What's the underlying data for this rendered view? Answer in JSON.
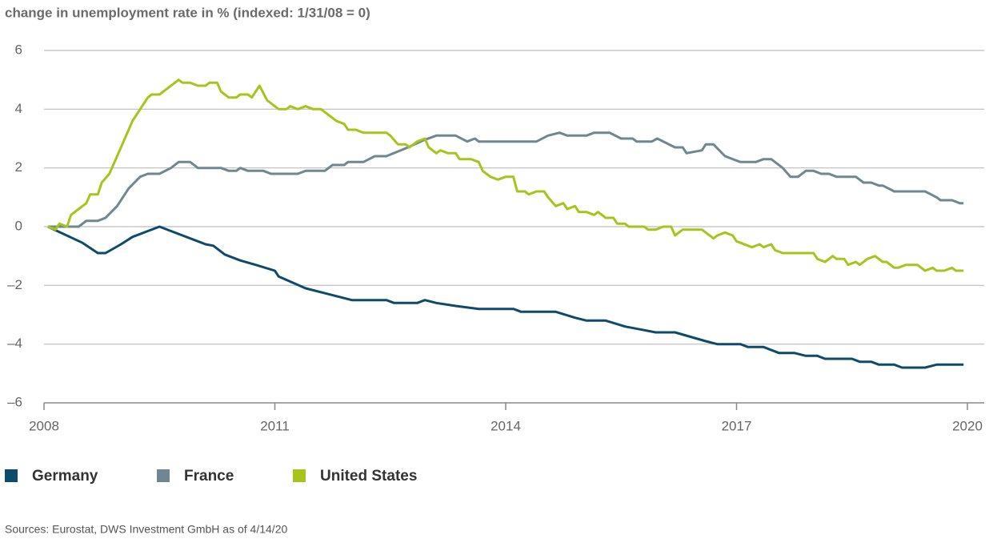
{
  "chart_data": {
    "type": "line",
    "title": "change in unemployment rate in % (indexed: 1/31/08 = 0)",
    "source": "Sources: Eurostat, DWS Investment GmbH as of 4/14/20",
    "xlim": [
      2008,
      2020
    ],
    "xticks": [
      2008,
      2011,
      2014,
      2017,
      2020
    ],
    "ylim": [
      -6,
      6
    ],
    "yticks": [
      {
        "value": -6,
        "label": "–6"
      },
      {
        "value": -4,
        "label": "–4"
      },
      {
        "value": -2,
        "label": "–2"
      },
      0,
      2,
      4,
      6
    ],
    "grid": true,
    "legend": "bottom-left",
    "series": [
      {
        "name": "Germany",
        "color": "#0d4a6b",
        "x": [
          2008.05,
          2008.5,
          2008.7,
          2008.8,
          2009.0,
          2009.15,
          2009.35,
          2009.5,
          2009.65,
          2010.1,
          2010.2,
          2010.35,
          2010.55,
          2010.75,
          2011.0,
          2011.05,
          2011.4,
          2011.7,
          2012.0,
          2012.45,
          2012.55,
          2012.85,
          2012.95,
          2013.1,
          2013.35,
          2013.65,
          2014.1,
          2014.2,
          2014.65,
          2014.9,
          2015.05,
          2015.3,
          2015.55,
          2015.75,
          2015.95,
          2016.2,
          2016.4,
          2016.6,
          2016.75,
          2017.05,
          2017.15,
          2017.35,
          2017.55,
          2017.75,
          2017.9,
          2018.05,
          2018.15,
          2018.5,
          2018.6,
          2018.75,
          2018.85,
          2019.05,
          2019.15,
          2019.45,
          2019.6,
          2019.95
        ],
        "values": [
          0,
          -0.55,
          -0.9,
          -0.9,
          -0.6,
          -0.35,
          -0.15,
          0,
          -0.15,
          -0.6,
          -0.65,
          -0.95,
          -1.15,
          -1.3,
          -1.5,
          -1.7,
          -2.1,
          -2.3,
          -2.5,
          -2.5,
          -2.6,
          -2.6,
          -2.5,
          -2.6,
          -2.7,
          -2.8,
          -2.8,
          -2.9,
          -2.9,
          -3.1,
          -3.2,
          -3.2,
          -3.4,
          -3.5,
          -3.6,
          -3.6,
          -3.75,
          -3.9,
          -4.0,
          -4.0,
          -4.1,
          -4.1,
          -4.3,
          -4.3,
          -4.4,
          -4.4,
          -4.5,
          -4.5,
          -4.6,
          -4.6,
          -4.7,
          -4.7,
          -4.8,
          -4.8,
          -4.7,
          -4.7
        ]
      },
      {
        "name": "France",
        "color": "#6f8790",
        "x": [
          2008.05,
          2008.3,
          2008.45,
          2008.55,
          2008.7,
          2008.8,
          2008.95,
          2009.1,
          2009.25,
          2009.35,
          2009.5,
          2009.65,
          2009.75,
          2009.9,
          2010.0,
          2010.3,
          2010.4,
          2010.5,
          2010.55,
          2010.65,
          2010.85,
          2010.95,
          2011.3,
          2011.4,
          2011.65,
          2011.75,
          2011.9,
          2011.95,
          2012.15,
          2012.3,
          2012.45,
          2012.73,
          2012.94,
          2013.1,
          2013.35,
          2013.5,
          2013.6,
          2013.65,
          2014.4,
          2014.55,
          2014.7,
          2014.8,
          2015.05,
          2015.15,
          2015.35,
          2015.5,
          2015.65,
          2015.7,
          2015.9,
          2015.97,
          2016.2,
          2016.3,
          2016.35,
          2016.55,
          2016.6,
          2016.7,
          2016.85,
          2017.05,
          2017.25,
          2017.35,
          2017.45,
          2017.6,
          2017.7,
          2017.8,
          2017.9,
          2018.0,
          2018.1,
          2018.2,
          2018.3,
          2018.55,
          2018.65,
          2018.75,
          2018.85,
          2018.9,
          2019.05,
          2019.45,
          2019.6,
          2019.65,
          2019.8,
          2019.9,
          2019.95
        ],
        "values": [
          0,
          0,
          0,
          0.2,
          0.2,
          0.3,
          0.7,
          1.3,
          1.7,
          1.8,
          1.8,
          2.0,
          2.2,
          2.2,
          2.0,
          2.0,
          1.9,
          1.9,
          2.0,
          1.9,
          1.9,
          1.8,
          1.8,
          1.9,
          1.9,
          2.1,
          2.1,
          2.2,
          2.2,
          2.4,
          2.4,
          2.7,
          2.95,
          3.1,
          3.1,
          2.9,
          3.0,
          2.9,
          2.9,
          3.1,
          3.2,
          3.1,
          3.1,
          3.2,
          3.2,
          3.0,
          3.0,
          2.9,
          2.9,
          3.0,
          2.7,
          2.7,
          2.5,
          2.6,
          2.8,
          2.8,
          2.4,
          2.2,
          2.2,
          2.3,
          2.3,
          2.0,
          1.7,
          1.7,
          1.9,
          1.9,
          1.8,
          1.8,
          1.7,
          1.7,
          1.5,
          1.5,
          1.4,
          1.4,
          1.2,
          1.2,
          1.0,
          0.9,
          0.9,
          0.8,
          0.8
        ]
      },
      {
        "name": "United States",
        "color": "#a7c41c",
        "x": [
          2008.05,
          2008.15,
          2008.2,
          2008.3,
          2008.35,
          2008.45,
          2008.55,
          2008.6,
          2008.7,
          2008.75,
          2008.85,
          2008.95,
          2009.05,
          2009.15,
          2009.25,
          2009.35,
          2009.4,
          2009.5,
          2009.6,
          2009.75,
          2009.8,
          2009.9,
          2010.0,
          2010.1,
          2010.15,
          2010.25,
          2010.3,
          2010.4,
          2010.5,
          2010.55,
          2010.65,
          2010.7,
          2010.8,
          2010.9,
          2011.0,
          2011.05,
          2011.15,
          2011.2,
          2011.3,
          2011.4,
          2011.5,
          2011.6,
          2011.7,
          2011.8,
          2011.9,
          2011.95,
          2012.05,
          2012.15,
          2012.45,
          2012.5,
          2012.6,
          2012.7,
          2012.75,
          2012.85,
          2012.95,
          2013.0,
          2013.1,
          2013.15,
          2013.25,
          2013.35,
          2013.4,
          2013.55,
          2013.65,
          2013.7,
          2013.8,
          2013.9,
          2014.0,
          2014.1,
          2014.15,
          2014.25,
          2014.3,
          2014.4,
          2014.5,
          2014.55,
          2014.65,
          2014.75,
          2014.8,
          2014.9,
          2014.95,
          2015.05,
          2015.15,
          2015.2,
          2015.3,
          2015.4,
          2015.45,
          2015.55,
          2015.6,
          2015.8,
          2015.85,
          2015.95,
          2016.05,
          2016.15,
          2016.2,
          2016.3,
          2016.55,
          2016.6,
          2016.7,
          2016.75,
          2016.85,
          2016.95,
          2017.0,
          2017.15,
          2017.2,
          2017.3,
          2017.35,
          2017.45,
          2017.5,
          2017.6,
          2018.0,
          2018.05,
          2018.15,
          2018.25,
          2018.3,
          2018.4,
          2018.45,
          2018.55,
          2018.6,
          2018.7,
          2018.8,
          2018.9,
          2018.95,
          2019.05,
          2019.1,
          2019.2,
          2019.35,
          2019.45,
          2019.55,
          2019.6,
          2019.7,
          2019.8,
          2019.85,
          2019.95
        ],
        "values": [
          0,
          -0.1,
          0.1,
          0,
          0.4,
          0.6,
          0.8,
          1.1,
          1.1,
          1.5,
          1.8,
          2.4,
          3.0,
          3.6,
          4.0,
          4.4,
          4.5,
          4.5,
          4.7,
          5.0,
          4.9,
          4.9,
          4.8,
          4.8,
          4.9,
          4.9,
          4.6,
          4.4,
          4.4,
          4.5,
          4.5,
          4.4,
          4.8,
          4.3,
          4.1,
          4.0,
          4.0,
          4.1,
          4.0,
          4.1,
          4.0,
          4.0,
          3.8,
          3.6,
          3.5,
          3.3,
          3.3,
          3.2,
          3.2,
          3.1,
          2.8,
          2.8,
          2.7,
          2.9,
          3.0,
          2.7,
          2.5,
          2.6,
          2.5,
          2.5,
          2.3,
          2.3,
          2.2,
          1.9,
          1.7,
          1.6,
          1.7,
          1.7,
          1.2,
          1.2,
          1.1,
          1.2,
          1.2,
          1.0,
          0.7,
          0.8,
          0.6,
          0.7,
          0.5,
          0.5,
          0.4,
          0.5,
          0.3,
          0.3,
          0.1,
          0.1,
          0,
          0,
          -0.1,
          -0.1,
          0,
          0,
          -0.3,
          -0.1,
          -0.1,
          -0.2,
          -0.4,
          -0.3,
          -0.2,
          -0.3,
          -0.5,
          -0.65,
          -0.7,
          -0.6,
          -0.7,
          -0.6,
          -0.8,
          -0.9,
          -0.9,
          -1.1,
          -1.2,
          -1.0,
          -1.1,
          -1.1,
          -1.3,
          -1.2,
          -1.3,
          -1.1,
          -1.0,
          -1.2,
          -1.2,
          -1.4,
          -1.4,
          -1.3,
          -1.3,
          -1.5,
          -1.4,
          -1.5,
          -1.5,
          -1.4,
          -1.5,
          -1.5
        ]
      }
    ]
  }
}
